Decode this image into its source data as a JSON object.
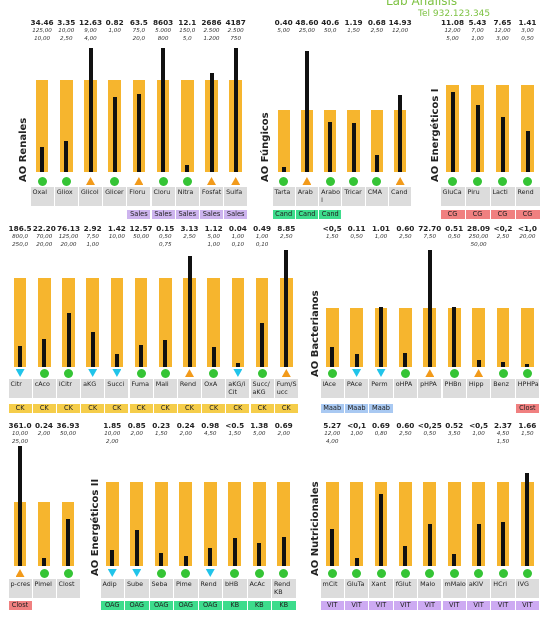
{
  "header": {
    "title": "Lab Analisis",
    "phone": "Tel 932.123.345"
  },
  "panels": [
    {
      "title": "AO Renales",
      "items": [
        {
          "name": "Oxal",
          "value": "34.46",
          "ref_high": "125,00",
          "ref_low": "10,00"
        },
        {
          "name": "Gliox",
          "value": "3.35",
          "ref_high": "10,00",
          "ref_low": "2,50"
        },
        {
          "name": "Glicol",
          "value": "12.63",
          "ref_high": "9,00",
          "ref_low": "4,00"
        },
        {
          "name": "Glicer",
          "value": "0.82",
          "ref_high": "1,00"
        },
        {
          "name": "Floru",
          "value": "63.5",
          "ref_high": "75,0",
          "ref_low": "20,0",
          "tag": {
            "label": "Sales",
            "color": "#cdb4ee"
          }
        },
        {
          "name": "Cloru",
          "value": "8603",
          "ref_high": "5.000",
          "ref_low": "800",
          "tag": {
            "label": "Sales",
            "color": "#cdb4ee"
          }
        },
        {
          "name": "Nitra",
          "value": "12.1",
          "ref_high": "150,0",
          "ref_low": "5,0",
          "tag": {
            "label": "Sales",
            "color": "#cdb4ee"
          }
        },
        {
          "name": "Fosfat",
          "value": "2686",
          "ref_high": "2.500",
          "ref_low": "1.200",
          "tag": {
            "label": "Sales",
            "color": "#cdb4ee"
          }
        },
        {
          "name": "Sulfa",
          "value": "4187",
          "ref_high": "2.500",
          "ref_low": "750",
          "tag": {
            "label": "Sales",
            "color": "#cdb4ee"
          }
        }
      ]
    },
    {
      "title": "AO Fúngicos",
      "items": [
        {
          "name": "Tarta",
          "value": "0.40",
          "ref_high": "5,00",
          "tag": {
            "label": "Cand",
            "color": "#3ddc8c"
          }
        },
        {
          "name": "Arab",
          "value": "48.60",
          "ref_high": "25,00",
          "tag": {
            "label": "Cand",
            "color": "#3ddc8c"
          }
        },
        {
          "name": "Arabol",
          "value": "40.6",
          "ref_high": "50,0",
          "tag": {
            "label": "Cand",
            "color": "#3ddc8c"
          }
        },
        {
          "name": "Tricar",
          "value": "1.19",
          "ref_high": "1,50"
        },
        {
          "name": "CMA",
          "value": "0.68",
          "ref_high": "2,50"
        },
        {
          "name": "Cand",
          "value": "14.93",
          "ref_high": "12,00"
        }
      ]
    },
    {
      "title": "AO Energéticos I",
      "items": [
        {
          "name": "GluCa",
          "value": "11.08",
          "ref_high": "12,00",
          "ref_low": "5,00",
          "tag": {
            "label": "CG",
            "color": "#f08080"
          }
        },
        {
          "name": "Piru",
          "value": "5.43",
          "ref_high": "7,00",
          "ref_low": "1,00",
          "tag": {
            "label": "CG",
            "color": "#f08080"
          }
        },
        {
          "name": "Lacti",
          "value": "7.65",
          "ref_high": "12,00",
          "ref_low": "3,00",
          "tag": {
            "label": "CG",
            "color": "#f08080"
          }
        },
        {
          "name": "Rend",
          "value": "1.41",
          "ref_high": "3,00",
          "ref_low": "0,50",
          "tag": {
            "label": "CG",
            "color": "#f08080"
          }
        }
      ]
    },
    {
      "items": [
        {
          "name": "Citr",
          "value": "186.5",
          "ref_high": "800,0",
          "ref_low": "250,0",
          "tag": {
            "label": "CK",
            "color": "#f5cd4a"
          }
        },
        {
          "name": "cAco",
          "value": "22.20",
          "ref_high": "70,00",
          "ref_low": "20,00",
          "tag": {
            "label": "CK",
            "color": "#f5cd4a"
          }
        },
        {
          "name": "iCitr",
          "value": "76.13",
          "ref_high": "125,00",
          "ref_low": "20,00",
          "tag": {
            "label": "CK",
            "color": "#f5cd4a"
          }
        },
        {
          "name": "aKG",
          "value": "2.92",
          "ref_high": "7,50",
          "ref_low": "1,00",
          "tag": {
            "label": "CK",
            "color": "#f5cd4a"
          }
        },
        {
          "name": "Succi",
          "value": "1.42",
          "ref_high": "10,00",
          "tag": {
            "label": "CK",
            "color": "#f5cd4a"
          }
        },
        {
          "name": "Fuma",
          "value": "12.57",
          "ref_high": "50,00",
          "tag": {
            "label": "CK",
            "color": "#f5cd4a"
          }
        },
        {
          "name": "Mali",
          "value": "0.15",
          "ref_high": "0,50",
          "ref_low": "0,75",
          "tag": {
            "label": "CK",
            "color": "#f5cd4a"
          }
        },
        {
          "name": "Rend",
          "value": "3.13",
          "ref_high": "2,50",
          "tag": {
            "label": "CK",
            "color": "#f5cd4a"
          }
        },
        {
          "name": "OxA",
          "value": "1.12",
          "ref_high": "5,00",
          "ref_low": "1,00",
          "tag": {
            "label": "CK",
            "color": "#f5cd4a"
          }
        },
        {
          "name": "aKG/iCit",
          "value": "0.04",
          "ref_high": "1,00",
          "ref_low": "0,10",
          "tag": {
            "label": "CK",
            "color": "#f5cd4a"
          }
        },
        {
          "name": "Succ/aKG",
          "value": "0.49",
          "ref_high": "1,00",
          "ref_low": "0,10",
          "tag": {
            "label": "CK",
            "color": "#f5cd4a"
          }
        },
        {
          "name": "Fum/Succ",
          "value": "8.85",
          "ref_high": "2,50",
          "tag": {
            "label": "CK",
            "color": "#f5cd4a"
          }
        }
      ]
    },
    {
      "title": "AO Bacterianos",
      "items": [
        {
          "name": "lAce",
          "value": "<0,5",
          "ref_high": "1,50",
          "tag": {
            "label": "Maab",
            "color": "#a9c9f2"
          }
        },
        {
          "name": "PAce",
          "value": "0.11",
          "ref_high": "0,50",
          "tag": {
            "label": "Maab",
            "color": "#a9c9f2"
          }
        },
        {
          "name": "Perm",
          "value": "1.01",
          "ref_high": "1,00",
          "tag": {
            "label": "Maab",
            "color": "#a9c9f2"
          }
        },
        {
          "name": "oHPA",
          "value": "0.60",
          "ref_high": "2,50"
        },
        {
          "name": "pHPA",
          "value": "72.70",
          "ref_high": "7,50"
        },
        {
          "name": "PHBn",
          "value": "0.51",
          "ref_high": "0,50"
        },
        {
          "name": "Hipp",
          "value": "28.09",
          "ref_high": "250,00",
          "ref_low": "50,00"
        },
        {
          "name": "Benz",
          "value": "<0,2",
          "ref_high": "2,50"
        },
        {
          "name": "HPHPa",
          "value": "<1,0",
          "ref_high": "20,00",
          "tag": {
            "label": "Clost",
            "color": "#f08080"
          }
        }
      ]
    },
    {
      "items": [
        {
          "name": "p-cres",
          "value": "361.0",
          "ref_high": "10,00",
          "ref_low": "25,00",
          "tag": {
            "label": "Clost",
            "color": "#f08080"
          }
        },
        {
          "name": "Pimel",
          "value": "0.24",
          "ref_high": "2,00"
        },
        {
          "name": "Clost",
          "value": "36.93",
          "ref_high": "50,00"
        }
      ]
    },
    {
      "title": "AO Energéticos II",
      "items": [
        {
          "name": "Adip",
          "value": "1.85",
          "ref_high": "10,00",
          "ref_low": "2,00",
          "tag": {
            "label": "OAG",
            "color": "#3ddc8c"
          }
        },
        {
          "name": "Sube",
          "value": "0.85",
          "ref_high": "2,00",
          "tag": {
            "label": "OAG",
            "color": "#3ddc8c"
          }
        },
        {
          "name": "Seba",
          "value": "0.23",
          "ref_high": "1,50",
          "tag": {
            "label": "OAG",
            "color": "#3ddc8c"
          }
        },
        {
          "name": "Pime",
          "value": "0.24",
          "ref_high": "2,00",
          "tag": {
            "label": "OAG",
            "color": "#3ddc8c"
          }
        },
        {
          "name": "Rend",
          "value": "0.98",
          "ref_high": "4,50",
          "tag": {
            "label": "OAG",
            "color": "#3ddc8c"
          }
        },
        {
          "name": "bHB",
          "value": "<0.5",
          "ref_high": "1,50",
          "tag": {
            "label": "KB",
            "color": "#3ddc8c"
          }
        },
        {
          "name": "AcAc",
          "value": "1.38",
          "ref_high": "5,00",
          "tag": {
            "label": "KB",
            "color": "#3ddc8c"
          }
        },
        {
          "name": "Rend KB",
          "value": "0.69",
          "ref_high": "2,00",
          "tag": {
            "label": "KB",
            "color": "#3ddc8c"
          }
        }
      ]
    },
    {
      "title": "AO Nutricionales",
      "items": [
        {
          "name": "mCit",
          "value": "5.27",
          "ref_high": "12,00",
          "ref_low": "4,00",
          "tag": {
            "label": "VIT",
            "color": "#cdaaf2"
          }
        },
        {
          "name": "GluTa",
          "value": "<0,1",
          "ref_high": "1,00",
          "tag": {
            "label": "VIT",
            "color": "#cdaaf2"
          }
        },
        {
          "name": "Xant",
          "value": "0.69",
          "ref_high": "0,80",
          "tag": {
            "label": "VIT",
            "color": "#cdaaf2"
          }
        },
        {
          "name": "fGlut",
          "value": "0.60",
          "ref_high": "2,50",
          "tag": {
            "label": "VIT",
            "color": "#cdaaf2"
          }
        },
        {
          "name": "Malo",
          "value": "<0,25",
          "ref_high": "0,50",
          "tag": {
            "label": "VIT",
            "color": "#cdaaf2"
          }
        },
        {
          "name": "mMalo",
          "value": "0.52",
          "ref_high": "3,50",
          "tag": {
            "label": "VIT",
            "color": "#cdaaf2"
          }
        },
        {
          "name": "aKIV",
          "value": "<0,5",
          "ref_high": "1,00",
          "tag": {
            "label": "VIT",
            "color": "#cdaaf2"
          }
        },
        {
          "name": "HCri",
          "value": "2.37",
          "ref_high": "4,50",
          "ref_low": "1,50",
          "tag": {
            "label": "VIT",
            "color": "#cdaaf2"
          }
        },
        {
          "name": "IVG",
          "value": "1.66",
          "ref_high": "1,50",
          "tag": {
            "label": "VIT",
            "color": "#cdaaf2"
          }
        }
      ]
    }
  ]
}
